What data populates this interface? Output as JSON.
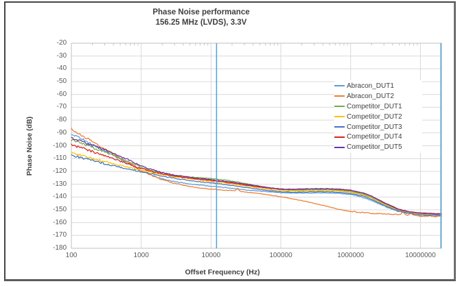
{
  "chart_data": {
    "type": "line",
    "title": "Phase Noise performance",
    "subtitle": "156.25 MHz (LVDS), 3.3V",
    "xlabel": "Offset Frequency (Hz)",
    "ylabel": "Phase Noise (dB)",
    "x_scale": "log",
    "xlim": [
      100,
      20000000
    ],
    "ylim": [
      -180,
      -20
    ],
    "x_ticks": [
      100,
      1000,
      10000,
      100000,
      1000000,
      10000000
    ],
    "x_tick_labels": [
      "100",
      "1000",
      "10000",
      "100000",
      "1000000",
      "10000000"
    ],
    "y_ticks": [
      -20,
      -30,
      -40,
      -50,
      -60,
      -70,
      -80,
      -90,
      -100,
      -110,
      -120,
      -130,
      -140,
      -150,
      -160,
      -170,
      -180
    ],
    "y_tick_labels": [
      "-20",
      "-30",
      "-40",
      "-50",
      "-60",
      "-70",
      "-80",
      "-90",
      "-100",
      "-110",
      "-120",
      "-130",
      "-140",
      "-150",
      "-160",
      "-170",
      "-180"
    ],
    "grid": true,
    "legend_position": "inside-right",
    "colors": {
      "grid": "#D9D9D9",
      "plot_border": "#BFBFBF",
      "axis_text": "#595959",
      "marker_line": "#4FA3DC"
    },
    "marker_lines": {
      "x_values": [
        12000,
        20000000
      ],
      "color": "#4FA3DC"
    },
    "x": [
      100,
      150,
      200,
      300,
      500,
      700,
      1000,
      1500,
      2000,
      3000,
      5000,
      7000,
      10000,
      15000,
      20000,
      30000,
      50000,
      70000,
      100000,
      150000,
      200000,
      300000,
      500000,
      700000,
      1000000,
      1500000,
      2000000,
      3000000,
      5000000,
      7000000,
      10000000,
      15000000,
      20000000
    ],
    "series": [
      {
        "name": "Abracon_DUT1",
        "color": "#5B9BD5",
        "y": [
          -90.5,
          -95.5,
          -99,
          -104,
          -110.5,
          -115,
          -119.8,
          -123.5,
          -125.8,
          -128,
          -129.8,
          -130.7,
          -131.5,
          -132.5,
          -133.3,
          -134.3,
          -135.4,
          -136,
          -136.6,
          -136.8,
          -136.9,
          -136.8,
          -136.9,
          -137.2,
          -138,
          -140.2,
          -142.8,
          -147,
          -151.5,
          -153.2,
          -154.6,
          -154.8,
          -154.8
        ],
        "spikes": [
          [
            5200000,
            2.0,
            0.018
          ],
          [
            6900000,
            2.2,
            0.016
          ]
        ]
      },
      {
        "name": "Abracon_DUT2",
        "color": "#ED7D31",
        "y": [
          -87,
          -92.7,
          -96.7,
          -102.3,
          -109.5,
          -114.2,
          -119.3,
          -123.8,
          -126.5,
          -129.3,
          -131.8,
          -132.9,
          -133.8,
          -134.5,
          -135,
          -136,
          -137.4,
          -138.5,
          -139.8,
          -141.5,
          -142.8,
          -145,
          -147.8,
          -149.8,
          -151.3,
          -152.2,
          -152.7,
          -153.2,
          -153.6,
          -154,
          -154.8,
          -155.2,
          -155.4
        ],
        "spikes": [
          [
            24000,
            2.3,
            0.022
          ],
          [
            5600000,
            2.6,
            0.018
          ],
          [
            7400000,
            2.0,
            0.018
          ],
          [
            13500000,
            1.5,
            0.015
          ],
          [
            19000000,
            1.7,
            0.012
          ]
        ]
      },
      {
        "name": "Competitor_DUT1",
        "color": "#6FAC46",
        "y": [
          -95.5,
          -98.8,
          -101.3,
          -104.8,
          -109.8,
          -113.2,
          -116.8,
          -119.8,
          -121.2,
          -122.9,
          -124.3,
          -124.9,
          -125.5,
          -126.6,
          -127.6,
          -129.3,
          -131.5,
          -132.9,
          -134.2,
          -134.6,
          -134.5,
          -134.3,
          -134.4,
          -134.8,
          -135.6,
          -137.6,
          -140.2,
          -145,
          -150.3,
          -152,
          -153,
          -153.4,
          -153.6
        ],
        "spikes": []
      },
      {
        "name": "Competitor_DUT2",
        "color": "#FFC000",
        "y": [
          -105.2,
          -107.8,
          -109.8,
          -112.3,
          -115.3,
          -117.2,
          -119.2,
          -121.2,
          -122.6,
          -124.3,
          -125.9,
          -126.9,
          -127.8,
          -128.9,
          -129.8,
          -131.2,
          -133,
          -134.1,
          -135.1,
          -135.4,
          -135.3,
          -135.1,
          -135.1,
          -135.5,
          -136.3,
          -138.3,
          -140.9,
          -145.6,
          -150.8,
          -152.4,
          -153.3,
          -153.7,
          -153.9
        ],
        "spikes": []
      },
      {
        "name": "Competitor_DUT3",
        "color": "#4472C4",
        "y": [
          -107.3,
          -109.8,
          -111.6,
          -114,
          -116.8,
          -118.5,
          -120.2,
          -122.2,
          -123.7,
          -125.5,
          -127.1,
          -128.1,
          -129,
          -130.1,
          -131,
          -132.4,
          -134.1,
          -135.2,
          -136,
          -136.3,
          -136.2,
          -136,
          -136,
          -136.4,
          -137.2,
          -139.2,
          -141.8,
          -146.4,
          -151.2,
          -152.8,
          -153.8,
          -154.1,
          -154.3
        ],
        "spikes": []
      },
      {
        "name": "Competitor_DUT4",
        "color": "#E0201B",
        "y": [
          -99.4,
          -102.3,
          -104.6,
          -107.8,
          -112,
          -114.8,
          -117.8,
          -120.3,
          -121.9,
          -123.7,
          -125.2,
          -126.2,
          -127.1,
          -128.2,
          -129.1,
          -130.5,
          -132.2,
          -133.2,
          -134,
          -134.1,
          -133.9,
          -133.7,
          -133.7,
          -134.1,
          -134.9,
          -136.9,
          -139.4,
          -144.2,
          -149.7,
          -151.4,
          -152.4,
          -152.8,
          -153
        ],
        "spikes": []
      },
      {
        "name": "Competitor_DUT5",
        "color": "#7030A0",
        "y": [
          -94,
          -97.2,
          -99.7,
          -103.2,
          -108.2,
          -111.7,
          -115.8,
          -119,
          -120.9,
          -122.9,
          -124.6,
          -125.6,
          -126.5,
          -127.6,
          -128.5,
          -129.9,
          -131.7,
          -132.8,
          -133.7,
          -133.9,
          -133.7,
          -133.5,
          -133.5,
          -133.9,
          -134.7,
          -136.7,
          -139.2,
          -144.5,
          -149.9,
          -151.6,
          -152.6,
          -153,
          -153.2
        ],
        "spikes": []
      }
    ]
  }
}
